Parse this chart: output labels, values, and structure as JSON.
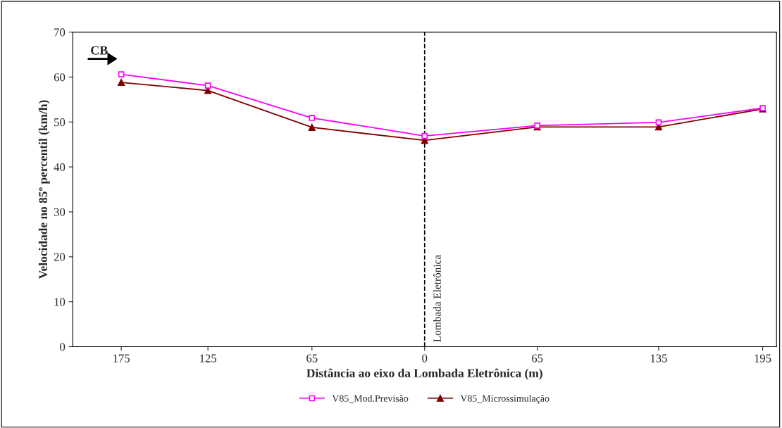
{
  "chart_data": {
    "type": "line",
    "xlabel": "Distância ao eixo da Lombada Eletrônica (m)",
    "ylabel": "Velocidade no 85º percentil (km/h)",
    "x": [
      -175,
      -125,
      -65,
      0,
      65,
      135,
      195
    ],
    "series": [
      {
        "name": "V85_Mod.Previsão",
        "color": "#ff00ff",
        "marker": "square",
        "values": [
          60.6,
          58.1,
          50.9,
          46.9,
          49.2,
          49.9,
          53.1
        ]
      },
      {
        "name": "V85_Microssimulação",
        "color": "#800000",
        "marker": "triangle",
        "values": [
          58.8,
          57.0,
          48.8,
          45.9,
          48.9,
          48.9,
          52.9
        ]
      }
    ],
    "xlim": [
      -203,
      203
    ],
    "xticks": [
      {
        "value": -175,
        "label": "175"
      },
      {
        "value": -125,
        "label": "125"
      },
      {
        "value": -65,
        "label": "65"
      },
      0,
      65,
      135,
      195
    ],
    "ylim": [
      0,
      70
    ],
    "yticks": [
      0,
      10,
      20,
      30,
      40,
      50,
      60,
      70
    ],
    "ref_lines": [
      {
        "axis": "x",
        "value": 0,
        "label": "Lombada Eletrônica",
        "color": "#000000",
        "line_style": "dashed"
      }
    ],
    "annotations": [
      "CB"
    ],
    "grid": false,
    "legend": "bottom",
    "line_style": "solid"
  }
}
